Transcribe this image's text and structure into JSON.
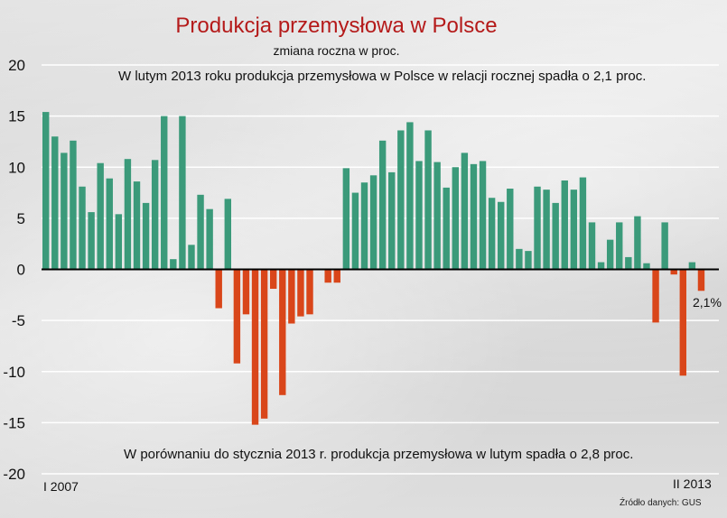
{
  "chart_data": {
    "type": "bar",
    "title": "Produkcja przemysłowa w Polsce",
    "subtitle": "zmiana roczna w proc.",
    "annotation_top": "W lutym 2013 roku produkcja przemysłowa w Polsce w relacji rocznej spadła o 2,1 proc.",
    "annotation_bottom": "W porównaniu do stycznia 2013 r. produkcja przemysłowa w lutym spadła o 2,8 proc.",
    "x_start_label": "I 2007",
    "x_end_label": "II 2013",
    "last_value_label": "2,1%",
    "source": "Źródło danych: GUS",
    "ylim": [
      -20,
      20
    ],
    "yticks": [
      20,
      15,
      10,
      5,
      0,
      -5,
      -10,
      -15,
      -20
    ],
    "grid": true,
    "positive_color": "#3a9a7a",
    "negative_color": "#d9461a",
    "values": [
      15.4,
      13.0,
      11.4,
      12.6,
      8.1,
      5.6,
      10.4,
      8.9,
      5.4,
      10.8,
      8.6,
      6.5,
      10.7,
      15.0,
      1.0,
      15.0,
      2.4,
      7.3,
      5.9,
      -3.8,
      6.9,
      -9.2,
      -4.4,
      -15.2,
      -14.6,
      -1.9,
      -12.3,
      -5.3,
      -4.6,
      -4.4,
      0.0,
      -1.3,
      -1.3,
      9.9,
      7.5,
      8.5,
      9.2,
      12.6,
      9.5,
      13.6,
      14.4,
      10.6,
      13.6,
      10.5,
      8.0,
      10.0,
      11.4,
      10.3,
      10.6,
      7.0,
      6.6,
      7.9,
      2.0,
      1.8,
      8.1,
      7.8,
      6.5,
      8.7,
      7.8,
      9.0,
      4.6,
      0.7,
      2.9,
      4.6,
      1.2,
      5.2,
      0.6,
      -5.2,
      4.6,
      -0.5,
      -10.4,
      0.7,
      -2.1
    ]
  }
}
